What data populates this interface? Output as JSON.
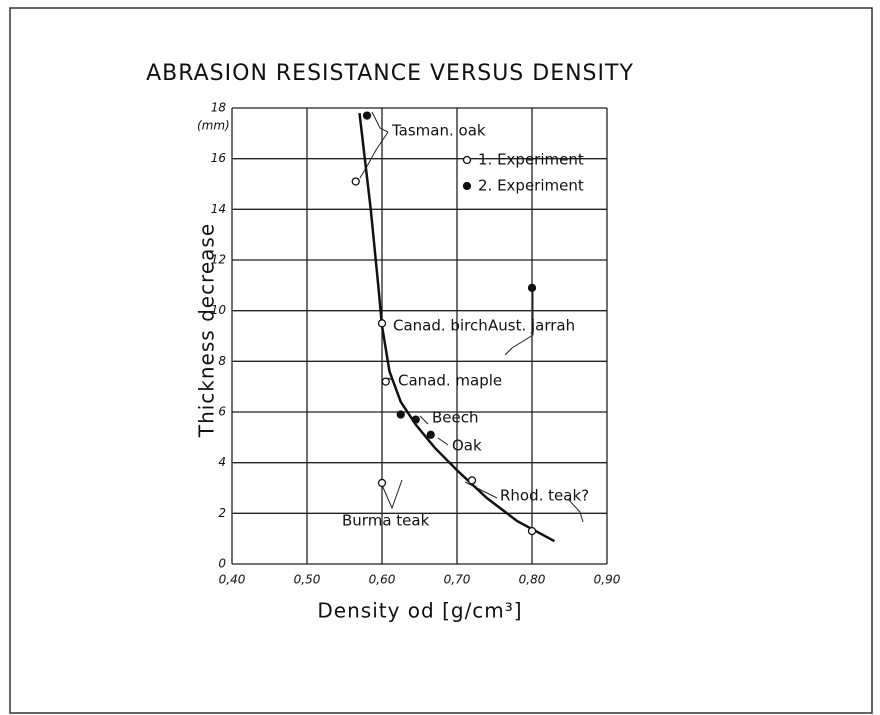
{
  "chart_data": {
    "type": "scatter",
    "title": "ABRASION RESISTANCE VERSUS DENSITY",
    "y_label": "Thickness decrease",
    "y_unit": "(mm)",
    "x_label": "Density od [g/cm³]",
    "xlim": [
      0.4,
      0.9
    ],
    "ylim": [
      0,
      18
    ],
    "xticks": [
      {
        "value": 0.4,
        "label": "0,40"
      },
      {
        "value": 0.5,
        "label": "0,50"
      },
      {
        "value": 0.6,
        "label": "0,60"
      },
      {
        "value": 0.7,
        "label": "0,70"
      },
      {
        "value": 0.8,
        "label": "0,80"
      },
      {
        "value": 0.9,
        "label": "0,90"
      }
    ],
    "yticks": [
      0,
      2,
      4,
      6,
      8,
      10,
      12,
      14,
      16,
      18
    ],
    "grid": true,
    "color": "#111111",
    "series": [
      {
        "name": "1. Experiment",
        "marker": "open",
        "x": [
          0.565,
          0.6,
          0.605,
          0.6,
          0.72,
          0.8
        ],
        "values": [
          15.1,
          9.5,
          7.2,
          3.2,
          3.3,
          1.3
        ]
      },
      {
        "name": "2. Experiment",
        "marker": "filled",
        "x": [
          0.58,
          0.625,
          0.645,
          0.665,
          0.8
        ],
        "values": [
          17.7,
          5.9,
          5.7,
          5.1,
          10.9
        ]
      }
    ],
    "curve": {
      "x": [
        0.57,
        0.585,
        0.595,
        0.6,
        0.61,
        0.625,
        0.645,
        0.67,
        0.7,
        0.74,
        0.78,
        0.83
      ],
      "values": [
        17.8,
        14,
        11,
        9.4,
        7.6,
        6.4,
        5.5,
        4.6,
        3.7,
        2.6,
        1.7,
        0.9
      ]
    },
    "annotations": [
      "Tasman. oak",
      "Canad. birch",
      "Aust. jarrah",
      "Canad. maple",
      "Beech",
      "Oak",
      "Rhod. teak?",
      "Burma teak"
    ]
  }
}
